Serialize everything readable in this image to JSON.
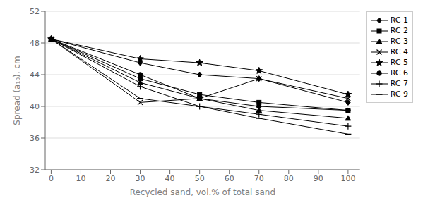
{
  "chart_data": {
    "type": "line",
    "x": [
      0,
      30,
      50,
      70,
      100
    ],
    "series": [
      {
        "name": "RC 1",
        "values": [
          48.5,
          45.5,
          44.0,
          43.5,
          40.5
        ],
        "marker": "diamond"
      },
      {
        "name": "RC 2",
        "values": [
          48.5,
          43.5,
          41.5,
          40.5,
          39.5
        ],
        "marker": "square"
      },
      {
        "name": "RC 3",
        "values": [
          48.5,
          43.0,
          41.0,
          39.5,
          38.5
        ],
        "marker": "triangle"
      },
      {
        "name": "RC 4",
        "values": [
          48.5,
          40.5,
          41.0,
          43.5,
          41.0
        ],
        "marker": "x"
      },
      {
        "name": "RC 5",
        "values": [
          48.5,
          46.0,
          45.5,
          44.5,
          41.5
        ],
        "marker": "star"
      },
      {
        "name": "RC 6",
        "values": [
          48.5,
          44.0,
          41.0,
          40.0,
          39.5
        ],
        "marker": "circle"
      },
      {
        "name": "RC 7",
        "values": [
          48.5,
          42.5,
          40.0,
          39.0,
          37.5
        ],
        "marker": "plus"
      },
      {
        "name": "RC 9",
        "values": [
          48.5,
          41.0,
          40.0,
          38.5,
          36.5
        ],
        "marker": "dash"
      }
    ],
    "color": "black",
    "ylabel": "Spread (a₁₀), cm",
    "xlabel": "Recycled sand, vol.% of total sand",
    "ylim": [
      32,
      52
    ],
    "yticks": [
      32,
      36,
      40,
      44,
      48,
      52
    ],
    "xlim": [
      -2,
      104
    ],
    "xticks": [
      0,
      10,
      20,
      30,
      40,
      50,
      60,
      70,
      80,
      90,
      100
    ],
    "grid": "y",
    "legend": "right"
  }
}
